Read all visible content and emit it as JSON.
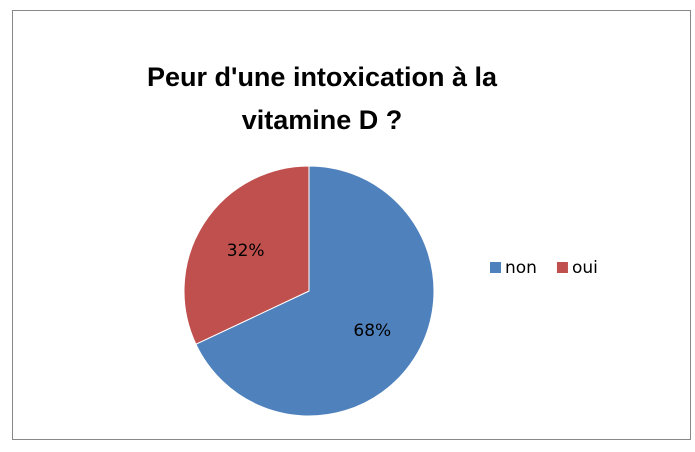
{
  "chart_data": {
    "type": "pie",
    "title": "Peur d'une intoxication à la vitamine D ?",
    "categories": [
      "non",
      "oui"
    ],
    "values": [
      68,
      32
    ],
    "value_labels": [
      "68%",
      "32%"
    ],
    "colors": [
      "#4f81bd",
      "#c0504d"
    ],
    "legend": "right"
  }
}
